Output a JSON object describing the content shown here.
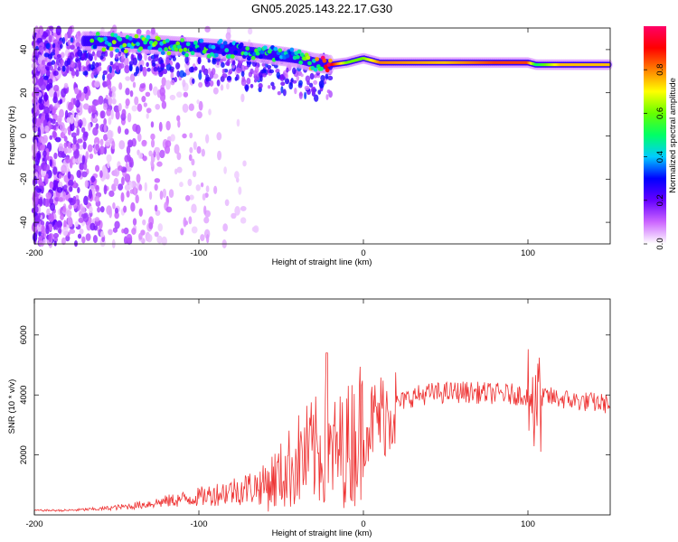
{
  "title": "GN05.2025.143.22.17.G30",
  "chart_data": [
    {
      "type": "heatmap",
      "xlabel": "Height of straight line (km)",
      "ylabel": "Frequency (Hz)",
      "xlim": [
        -200,
        150
      ],
      "ylim": [
        -50,
        50
      ],
      "xticks": [
        "-200",
        "-100",
        "0",
        "100"
      ],
      "yticks": [
        "-40",
        "-20",
        "0",
        "20",
        "40"
      ],
      "colorbar": {
        "label": "Normalized spectral amplitude",
        "range": [
          0,
          1
        ],
        "ticks": [
          "0.0",
          "0.2",
          "0.4",
          "0.6",
          "0.8"
        ],
        "colors": [
          "#ffffff",
          "#cc66ff",
          "#6600ff",
          "#0000ff",
          "#00ccff",
          "#00ff66",
          "#66ff00",
          "#ffff00",
          "#ff8000",
          "#ff0000",
          "#ff0066"
        ]
      },
      "ridge": {
        "x": [
          -160,
          -140,
          -120,
          -100,
          -80,
          -60,
          -40,
          -30,
          -20,
          -10,
          0,
          10,
          50,
          80,
          100,
          105,
          120,
          150
        ],
        "frequency": [
          44,
          43,
          42,
          41,
          40,
          38,
          36,
          34,
          33,
          34,
          36,
          34,
          34,
          34,
          34,
          33,
          33,
          33
        ],
        "amplitude": [
          0.5,
          0.5,
          0.5,
          0.45,
          0.45,
          0.45,
          0.5,
          0.6,
          0.95,
          0.6,
          0.6,
          0.8,
          0.75,
          0.85,
          0.85,
          0.5,
          0.75,
          0.75
        ]
      }
    },
    {
      "type": "line",
      "xlabel": "Height of straight line (km)",
      "ylabel": "SNR (10 * v/v)",
      "xlim": [
        -200,
        150
      ],
      "ylim": [
        0,
        7200
      ],
      "xticks": [
        "-200",
        "-100",
        "0",
        "100"
      ],
      "yticks": [
        "2000",
        "4000",
        "6000"
      ],
      "color": "#ee3333",
      "series": [
        {
          "x": [
            -200,
            -180,
            -160,
            -140,
            -120,
            -100,
            -80,
            -60,
            -50,
            -40,
            -30,
            -20,
            -10,
            0,
            10,
            20,
            30,
            40,
            60,
            80,
            100,
            105,
            110,
            130,
            150
          ],
          "values": [
            150,
            150,
            200,
            300,
            450,
            600,
            800,
            1000,
            1300,
            1800,
            2100,
            2000,
            2300,
            2900,
            3300,
            3700,
            3950,
            4050,
            4100,
            4050,
            4000,
            3500,
            3950,
            3800,
            3700
          ]
        }
      ]
    }
  ]
}
